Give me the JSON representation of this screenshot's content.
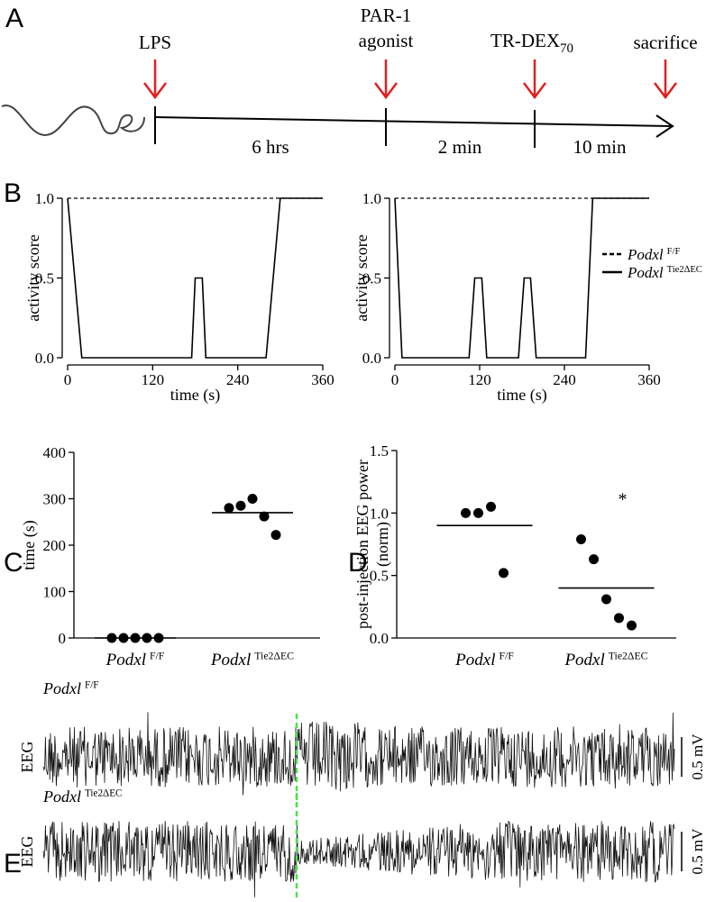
{
  "panel_labels": [
    "A",
    "B",
    "C",
    "D",
    "E"
  ],
  "timeline": {
    "events": [
      {
        "label": "LPS"
      },
      {
        "label": "PAR-1",
        "label_line2": "agonist"
      },
      {
        "label": "TR-DEX",
        "subscript": "70"
      },
      {
        "label": "sacrifice"
      }
    ],
    "intervals": [
      "6 hrs",
      "2 min",
      "10 min"
    ]
  },
  "chart_data": [
    {
      "type": "line",
      "xlabel": "time (s)",
      "ylabel": "activity score",
      "x": [
        0,
        20,
        175,
        180,
        190,
        195,
        280,
        300,
        360
      ],
      "series": [
        {
          "color": "#000000",
          "dashed": true,
          "values": [
            1.0,
            1.0,
            1.0,
            1.0,
            1.0,
            1.0,
            1.0,
            1.0,
            1.0
          ]
        },
        {
          "color": "#000000",
          "dashed": false,
          "values": [
            1.0,
            0.0,
            0.0,
            0.5,
            0.5,
            0.0,
            0.0,
            1.0,
            1.0
          ]
        }
      ],
      "xlim": [
        0,
        360
      ],
      "xticks": [
        0,
        120,
        240,
        360
      ],
      "ylim": [
        0,
        1
      ],
      "yticks": [
        {
          "value": 0,
          "label": "0.0"
        },
        {
          "value": 0.5,
          "label": "0.5"
        },
        {
          "value": 1,
          "label": "1.0"
        }
      ]
    },
    {
      "type": "line",
      "xlabel": "time (s)",
      "ylabel": "activity score",
      "x": [
        0,
        10,
        105,
        113,
        123,
        130,
        175,
        183,
        192,
        200,
        270,
        280,
        360
      ],
      "series": [
        {
          "name": "Podxl",
          "superscript": "F/F",
          "color": "#000000",
          "dashed": true,
          "values": [
            1.0,
            1.0,
            1.0,
            1.0,
            1.0,
            1.0,
            1.0,
            1.0,
            1.0,
            1.0,
            1.0,
            1.0,
            1.0
          ]
        },
        {
          "name": "Podxl",
          "superscript": "Tie2ΔEC",
          "color": "#000000",
          "dashed": false,
          "values": [
            1.0,
            0.0,
            0.0,
            0.5,
            0.5,
            0.0,
            0.0,
            0.5,
            0.5,
            0.0,
            0.0,
            1.0,
            1.0
          ]
        }
      ],
      "legend": "right",
      "xlim": [
        0,
        360
      ],
      "xticks": [
        0,
        120,
        240,
        360
      ],
      "ylim": [
        0,
        1
      ],
      "yticks": [
        {
          "value": 0,
          "label": "0.0"
        },
        {
          "value": 0.5,
          "label": "0.5"
        },
        {
          "value": 1,
          "label": "1.0"
        }
      ]
    },
    {
      "type": "scatter",
      "ylabel": "time (s)",
      "categories": [
        "Podxl",
        "Podxl"
      ],
      "category_superscripts": [
        "F/F",
        "Tie2ΔEC"
      ],
      "points": [
        [
          0,
          0,
          0,
          0,
          0
        ],
        [
          280,
          285,
          300,
          262,
          222
        ]
      ],
      "means": [
        0,
        270
      ],
      "color": "#000000",
      "ylim": [
        0,
        400
      ],
      "yticks": [
        0,
        100,
        200,
        300,
        400
      ]
    },
    {
      "type": "scatter",
      "ylabel": "post-injection EEG power",
      "ylabel_line2": "(norm)",
      "categories": [
        "Podxl",
        "Podxl"
      ],
      "category_superscripts": [
        "F/F",
        "Tie2ΔEC"
      ],
      "points": [
        [
          1.0,
          1.0,
          1.05,
          0.52
        ],
        [
          0.79,
          0.63,
          0.31,
          0.16,
          0.1
        ]
      ],
      "means": [
        0.9,
        0.4
      ],
      "color": "#000000",
      "annotation": "*",
      "ylim": [
        0,
        1.5
      ],
      "yticks": [
        {
          "value": 0,
          "label": "0.0"
        },
        {
          "value": 0.5,
          "label": "0.5"
        },
        {
          "value": 1,
          "label": "1.0"
        },
        {
          "value": 1.5,
          "label": "1.5"
        }
      ]
    }
  ],
  "eeg": {
    "ylabel": "EEG",
    "scale_bar": "0.5 mV",
    "traces": [
      {
        "name": "Podxl",
        "superscript": "F/F"
      },
      {
        "name": "Podxl",
        "superscript": "Tie2ΔEC"
      }
    ]
  }
}
